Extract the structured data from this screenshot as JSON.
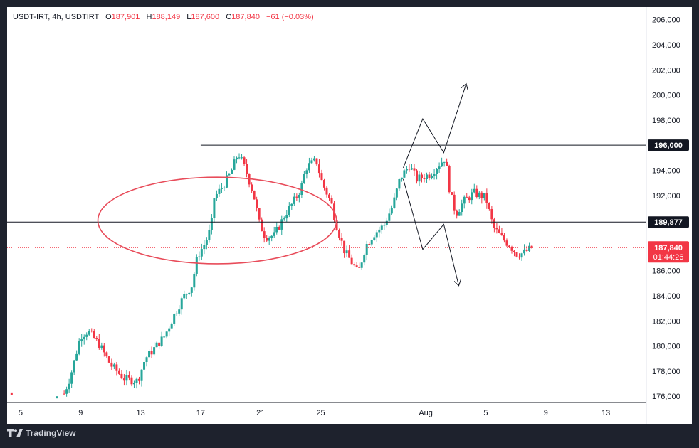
{
  "header": {
    "symbol": "USDT-IRT, 4h, USDTIRT",
    "o_label": "O",
    "open": "187,901",
    "h_label": "H",
    "high": "188,149",
    "l_label": "L",
    "low": "187,600",
    "c_label": "C",
    "close": "187,840",
    "change": "−61 (−0.03%)"
  },
  "footer": {
    "brand": "TradingView",
    "logo_icon": "tradingview-logo-icon"
  },
  "colors": {
    "up": "#26a69a",
    "down": "#f23645",
    "ellipse": "#e84c5a",
    "level_line": "#131722",
    "current_price_line": "#f23645",
    "axis_text": "#131722"
  },
  "chart_data": {
    "type": "candlestick",
    "timeframe": "4h",
    "y_axis": {
      "range": [
        175500,
        207000
      ],
      "ticks": [
        176000,
        178000,
        180000,
        182000,
        184000,
        186000,
        188000,
        190000,
        192000,
        194000,
        196000,
        198000,
        200000,
        202000,
        204000,
        206000
      ],
      "tick_labels": [
        "176,000",
        "178,000",
        "180,000",
        "182,000",
        "184,000",
        "186,000",
        "",
        "",
        "192,000",
        "194,000",
        "",
        "198,000",
        "200,000",
        "202,000",
        "204,000",
        "206,000"
      ]
    },
    "x_axis": {
      "tick_labels": [
        "5",
        "9",
        "13",
        "17",
        "21",
        "25",
        "Aug",
        "5",
        "9",
        "13"
      ],
      "tick_days": [
        5,
        9,
        13,
        17,
        21,
        25,
        32,
        36,
        40,
        44
      ],
      "range_days": [
        4.1,
        46.7
      ]
    },
    "price_levels": [
      {
        "label": "196,000",
        "value": 196000,
        "from_day": 17.0,
        "style": "horizontal-ray"
      },
      {
        "label": "189,877",
        "value": 189877,
        "from_day": 4.1,
        "style": "horizontal-line"
      }
    ],
    "current_price": {
      "label": "187,840",
      "countdown": "01:44:26",
      "value": 187840
    },
    "annotations": [
      {
        "type": "ellipse",
        "center": [
          18.1,
          190000
        ],
        "radius_days": 7.95,
        "radius_price": 3450
      },
      {
        "type": "polyline",
        "points": [
          [
            30.5,
            194200
          ],
          [
            31.8,
            198100
          ],
          [
            33.2,
            195400
          ],
          [
            34.7,
            200900
          ]
        ]
      },
      {
        "type": "polyline",
        "points": [
          [
            30.5,
            193300
          ],
          [
            31.8,
            187700
          ],
          [
            33.2,
            189700
          ],
          [
            34.2,
            184800
          ]
        ]
      }
    ],
    "anchors": [
      [
        4.1,
        176000
      ],
      [
        7.9,
        176200
      ],
      [
        8.3,
        177500
      ],
      [
        9.0,
        180800
      ],
      [
        9.5,
        181200
      ],
      [
        10.3,
        180000
      ],
      [
        11.0,
        178500
      ],
      [
        11.9,
        177400
      ],
      [
        12.8,
        177200
      ],
      [
        13.3,
        179000
      ],
      [
        13.9,
        179800
      ],
      [
        14.6,
        180800
      ],
      [
        15.2,
        182400
      ],
      [
        15.8,
        183800
      ],
      [
        16.4,
        184800
      ],
      [
        16.8,
        187200
      ],
      [
        17.3,
        188200
      ],
      [
        17.7,
        189500
      ],
      [
        17.9,
        191800
      ],
      [
        18.4,
        192600
      ],
      [
        19.0,
        193800
      ],
      [
        19.5,
        195400
      ],
      [
        20.0,
        194000
      ],
      [
        20.5,
        192200
      ],
      [
        20.9,
        189800
      ],
      [
        21.3,
        188700
      ],
      [
        21.9,
        188800
      ],
      [
        22.6,
        190400
      ],
      [
        23.2,
        191500
      ],
      [
        23.7,
        192600
      ],
      [
        24.0,
        194200
      ],
      [
        24.7,
        194800
      ],
      [
        25.1,
        193000
      ],
      [
        25.7,
        191400
      ],
      [
        26.1,
        189400
      ],
      [
        26.6,
        187500
      ],
      [
        27.0,
        186800
      ],
      [
        27.5,
        185800
      ],
      [
        28.0,
        188000
      ],
      [
        28.6,
        189000
      ],
      [
        29.2,
        189600
      ],
      [
        29.8,
        191200
      ],
      [
        30.3,
        193400
      ],
      [
        30.9,
        194400
      ],
      [
        31.4,
        193300
      ],
      [
        32.3,
        193700
      ],
      [
        33.3,
        195000
      ],
      [
        33.6,
        192300
      ],
      [
        34.0,
        190500
      ],
      [
        34.5,
        191500
      ],
      [
        35.2,
        192200
      ],
      [
        36.0,
        191800
      ],
      [
        36.5,
        189500
      ],
      [
        37.0,
        188700
      ],
      [
        37.6,
        188000
      ],
      [
        38.1,
        187300
      ],
      [
        38.5,
        187400
      ],
      [
        39.1,
        187840
      ]
    ]
  }
}
